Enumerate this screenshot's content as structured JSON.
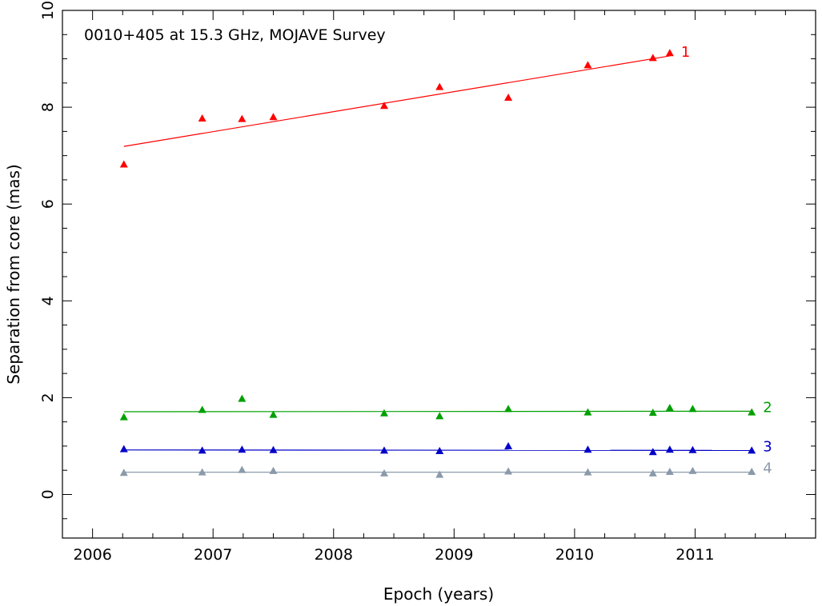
{
  "chart_data": {
    "type": "scatter",
    "title": "0010+405 at 15.3 GHz, MOJAVE Survey",
    "xlabel": "Epoch (years)",
    "ylabel": "Separation from core (mas)",
    "xlim": [
      2005.75,
      2012.0
    ],
    "ylim": [
      -0.9,
      10.0
    ],
    "xticks": [
      2006,
      2007,
      2008,
      2009,
      2010,
      2011
    ],
    "xtick_labels": [
      "2006",
      "2007",
      "2008",
      "2009",
      "2010",
      "2011"
    ],
    "yticks": [
      0,
      2,
      4,
      6,
      8,
      10
    ],
    "ytick_labels": [
      "0",
      "2",
      "4",
      "6",
      "8",
      "10"
    ],
    "grid": false,
    "marker": "triangle",
    "series": [
      {
        "name": "1",
        "color": "#ff0000",
        "x": [
          2006.26,
          2006.91,
          2007.24,
          2007.5,
          2008.42,
          2008.88,
          2009.45,
          2010.11,
          2010.65,
          2010.79
        ],
        "y": [
          6.82,
          7.77,
          7.76,
          7.8,
          8.03,
          8.42,
          8.2,
          8.87,
          9.02,
          9.12
        ],
        "fit": {
          "x": [
            2006.26,
            2010.79
          ],
          "y": [
            7.19,
            9.06
          ]
        }
      },
      {
        "name": "2",
        "color": "#00a000",
        "x": [
          2006.26,
          2006.91,
          2007.24,
          2007.5,
          2008.42,
          2008.88,
          2009.45,
          2010.11,
          2010.65,
          2010.79,
          2010.98,
          2011.47
        ],
        "y": [
          1.6,
          1.75,
          1.98,
          1.65,
          1.68,
          1.62,
          1.77,
          1.7,
          1.69,
          1.79,
          1.77,
          1.7
        ],
        "fit": {
          "x": [
            2006.26,
            2011.47
          ],
          "y": [
            1.71,
            1.72
          ]
        }
      },
      {
        "name": "3",
        "color": "#0000c8",
        "x": [
          2006.26,
          2006.91,
          2007.24,
          2007.5,
          2008.42,
          2008.88,
          2009.45,
          2010.11,
          2010.65,
          2010.79,
          2010.98,
          2011.47
        ],
        "y": [
          0.94,
          0.91,
          0.93,
          0.92,
          0.91,
          0.9,
          1.0,
          0.93,
          0.88,
          0.93,
          0.92,
          0.91
        ],
        "fit": {
          "x": [
            2006.26,
            2011.47
          ],
          "y": [
            0.92,
            0.91
          ]
        }
      },
      {
        "name": "4",
        "color": "#8a9aaa",
        "x": [
          2006.26,
          2006.91,
          2007.24,
          2007.5,
          2008.42,
          2008.88,
          2009.45,
          2010.11,
          2010.65,
          2010.79,
          2010.98,
          2011.47
        ],
        "y": [
          0.45,
          0.46,
          0.51,
          0.49,
          0.44,
          0.41,
          0.48,
          0.46,
          0.44,
          0.47,
          0.49,
          0.47
        ],
        "fit": {
          "x": [
            2006.26,
            2011.47
          ],
          "y": [
            0.46,
            0.46
          ]
        }
      }
    ]
  }
}
